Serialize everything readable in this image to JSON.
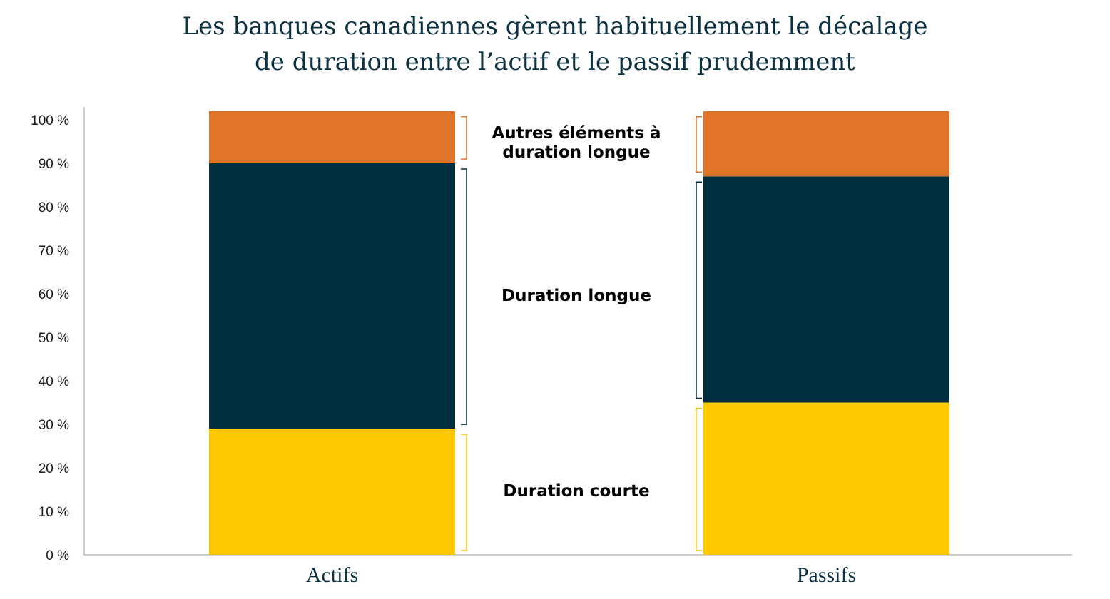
{
  "chart_data": {
    "type": "bar",
    "stacked": true,
    "title_lines": [
      "Les banques canadiennes gèrent habituellement le décalage",
      "de duration entre l’actif et le passif prudemment"
    ],
    "categories": [
      "Actifs",
      "Passifs"
    ],
    "series": [
      {
        "name": "Duration courte",
        "values": [
          29,
          35
        ],
        "color": "#fdc800"
      },
      {
        "name": "Duration longue",
        "values": [
          61,
          52
        ],
        "color": "#002e3f"
      },
      {
        "name": "Autres éléments à duration longue",
        "values": [
          12,
          15
        ],
        "color": "#e07428"
      }
    ],
    "series_label_lines": [
      [
        "Duration courte"
      ],
      [
        "Duration longue"
      ],
      [
        "Autres éléments à",
        "duration longue"
      ]
    ],
    "y_ticks": [
      "0 %",
      "10 %",
      "20 %",
      "30 %",
      "40 %",
      "50 %",
      "60 %",
      "70 %",
      "80 %",
      "90 %",
      "100 %"
    ],
    "ylim": [
      0,
      102
    ],
    "grid": false,
    "legend": "none",
    "bracket_colors": [
      "#fdc800",
      "#002e3f",
      "#e07428"
    ]
  }
}
